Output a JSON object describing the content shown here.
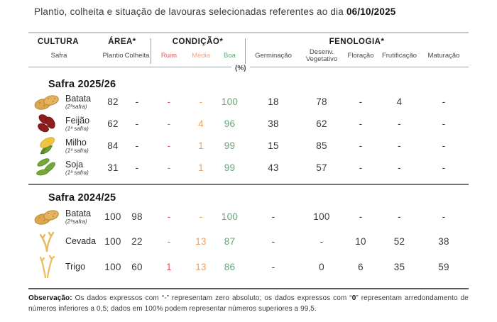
{
  "title": {
    "text": "Plantio, colheita e situação de lavouras selecionadas referentes ao dia",
    "date": "06/10/2025"
  },
  "header": {
    "groups": [
      {
        "label": "CULTURA",
        "subs": [
          "Safra"
        ]
      },
      {
        "label": "ÁREA*",
        "subs": [
          "Plantio",
          "Colheita"
        ]
      },
      {
        "label": "CONDIÇÃO*",
        "subs": [
          "Ruim",
          "Média",
          "Boa"
        ]
      },
      {
        "label": "FENOLOGIA*",
        "subs": [
          "Germinação",
          "Desenv. Vegetativo",
          "Floração",
          "Frutificação",
          "Maturação"
        ]
      }
    ],
    "unit_label": "(%)"
  },
  "sections": [
    {
      "title": "Safra 2025/26",
      "rows": [
        {
          "icon": "potato-icon",
          "name": "Batata",
          "variant": "(2ªsafra)",
          "values": [
            "82",
            "-",
            "-",
            "-",
            "100",
            "18",
            "78",
            "-",
            "4",
            "-"
          ]
        },
        {
          "icon": "beans-icon",
          "name": "Feijão",
          "variant": "(1ª safra)",
          "values": [
            "62",
            "-",
            "-",
            "4",
            "96",
            "38",
            "62",
            "-",
            "-",
            "-"
          ]
        },
        {
          "icon": "corn-icon",
          "name": "Milho",
          "variant": "(1ª safra)",
          "values": [
            "84",
            "-",
            "-",
            "1",
            "99",
            "15",
            "85",
            "-",
            "-",
            "-"
          ]
        },
        {
          "icon": "soybean-icon",
          "name": "Soja",
          "variant": "(1ª safra)",
          "values": [
            "31",
            "-",
            "-",
            "1",
            "99",
            "43",
            "57",
            "-",
            "-",
            "-"
          ]
        }
      ]
    },
    {
      "title": "Safra 2024/25",
      "rows": [
        {
          "icon": "potato-icon",
          "name": "Batata",
          "variant": "(2ªsafra)",
          "values": [
            "100",
            "98",
            "-",
            "-",
            "100",
            "-",
            "100",
            "-",
            "-",
            "-"
          ]
        },
        {
          "icon": "barley-icon",
          "name": "Cevada",
          "variant": "",
          "values": [
            "100",
            "22",
            "-",
            "13",
            "87",
            "-",
            "-",
            "10",
            "52",
            "38"
          ]
        },
        {
          "icon": "wheat-icon",
          "name": "Trigo",
          "variant": "",
          "values": [
            "100",
            "60",
            "1",
            "13",
            "86",
            "-",
            "0",
            "6",
            "35",
            "59"
          ]
        }
      ]
    }
  ],
  "footnote": {
    "label": "Observação:",
    "part1": " Os dados expressos com “-” representam zero absoluto; os dados expressos com “",
    "bold_zero": "0",
    "part2": "” representam arredondamento de números inferiores a 0,5; dados em 100% podem representar números superiores a 99,5."
  },
  "colors": {
    "ruim": "#e05757",
    "media": "#efa05f",
    "media_header": "#f2a483",
    "boa": "#61a873"
  }
}
